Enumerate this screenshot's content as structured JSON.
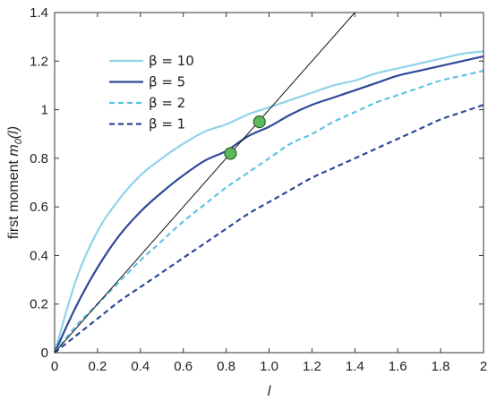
{
  "chart_data": {
    "type": "line",
    "title": "",
    "xlabel": "l",
    "ylabel_main": "first moment ",
    "ylabel_sym": "m",
    "ylabel_sub": "0",
    "ylabel_arg": "(l)",
    "xlim": [
      0,
      2
    ],
    "ylim": [
      0,
      1.4
    ],
    "grid": false,
    "legend_position": "upper-left",
    "x_ticks": [
      0,
      0.2,
      0.4,
      0.6,
      0.8,
      1.0,
      1.2,
      1.4,
      1.6,
      1.8,
      2
    ],
    "x_tick_labels": [
      "0",
      "0.2",
      "0.4",
      "0.6",
      "0.8",
      "1.0",
      "1.2",
      "1.4",
      "1.6",
      "1.8",
      "2"
    ],
    "y_ticks": [
      0,
      0.2,
      0.4,
      0.6,
      0.8,
      1.0,
      1.2,
      1.4
    ],
    "y_tick_labels": [
      "0",
      "0.2",
      "0.4",
      "0.6",
      "0.8",
      "1",
      "1.2",
      "1.4"
    ],
    "x": [
      0,
      0.1,
      0.2,
      0.3,
      0.4,
      0.5,
      0.6,
      0.7,
      0.8,
      0.9,
      1.0,
      1.1,
      1.2,
      1.3,
      1.4,
      1.5,
      1.6,
      1.7,
      1.8,
      1.9,
      2.0
    ],
    "series": [
      {
        "name": "β = 10",
        "style": "solid",
        "color": "#8fd3ea",
        "values": [
          0,
          0.3,
          0.5,
          0.63,
          0.73,
          0.8,
          0.86,
          0.91,
          0.94,
          0.98,
          1.01,
          1.04,
          1.07,
          1.1,
          1.12,
          1.15,
          1.17,
          1.19,
          1.21,
          1.23,
          1.24
        ]
      },
      {
        "name": "β = 5",
        "style": "solid",
        "color": "#2e4999",
        "values": [
          0,
          0.19,
          0.35,
          0.48,
          0.58,
          0.66,
          0.73,
          0.79,
          0.83,
          0.89,
          0.93,
          0.98,
          1.02,
          1.05,
          1.08,
          1.11,
          1.14,
          1.16,
          1.18,
          1.2,
          1.22
        ]
      },
      {
        "name": "β = 2",
        "style": "dashed",
        "color": "#5fc3e4",
        "values": [
          0,
          0.11,
          0.2,
          0.29,
          0.38,
          0.46,
          0.54,
          0.61,
          0.68,
          0.74,
          0.8,
          0.86,
          0.9,
          0.95,
          0.99,
          1.03,
          1.06,
          1.09,
          1.12,
          1.14,
          1.16
        ]
      },
      {
        "name": "β = 1",
        "style": "dashed",
        "color": "#2e4999",
        "values": [
          0,
          0.07,
          0.14,
          0.21,
          0.27,
          0.33,
          0.39,
          0.45,
          0.51,
          0.57,
          0.62,
          0.67,
          0.72,
          0.76,
          0.8,
          0.84,
          0.88,
          0.92,
          0.96,
          0.99,
          1.02
        ]
      }
    ],
    "reference_line": {
      "style": "solid",
      "color": "#111111",
      "x": [
        0,
        1.4
      ],
      "values": [
        0,
        1.4
      ]
    },
    "markers": {
      "color": "#5cb85c",
      "stroke": "#2d5e2d",
      "points": [
        [
          0.82,
          0.82
        ],
        [
          0.955,
          0.95
        ]
      ]
    }
  }
}
